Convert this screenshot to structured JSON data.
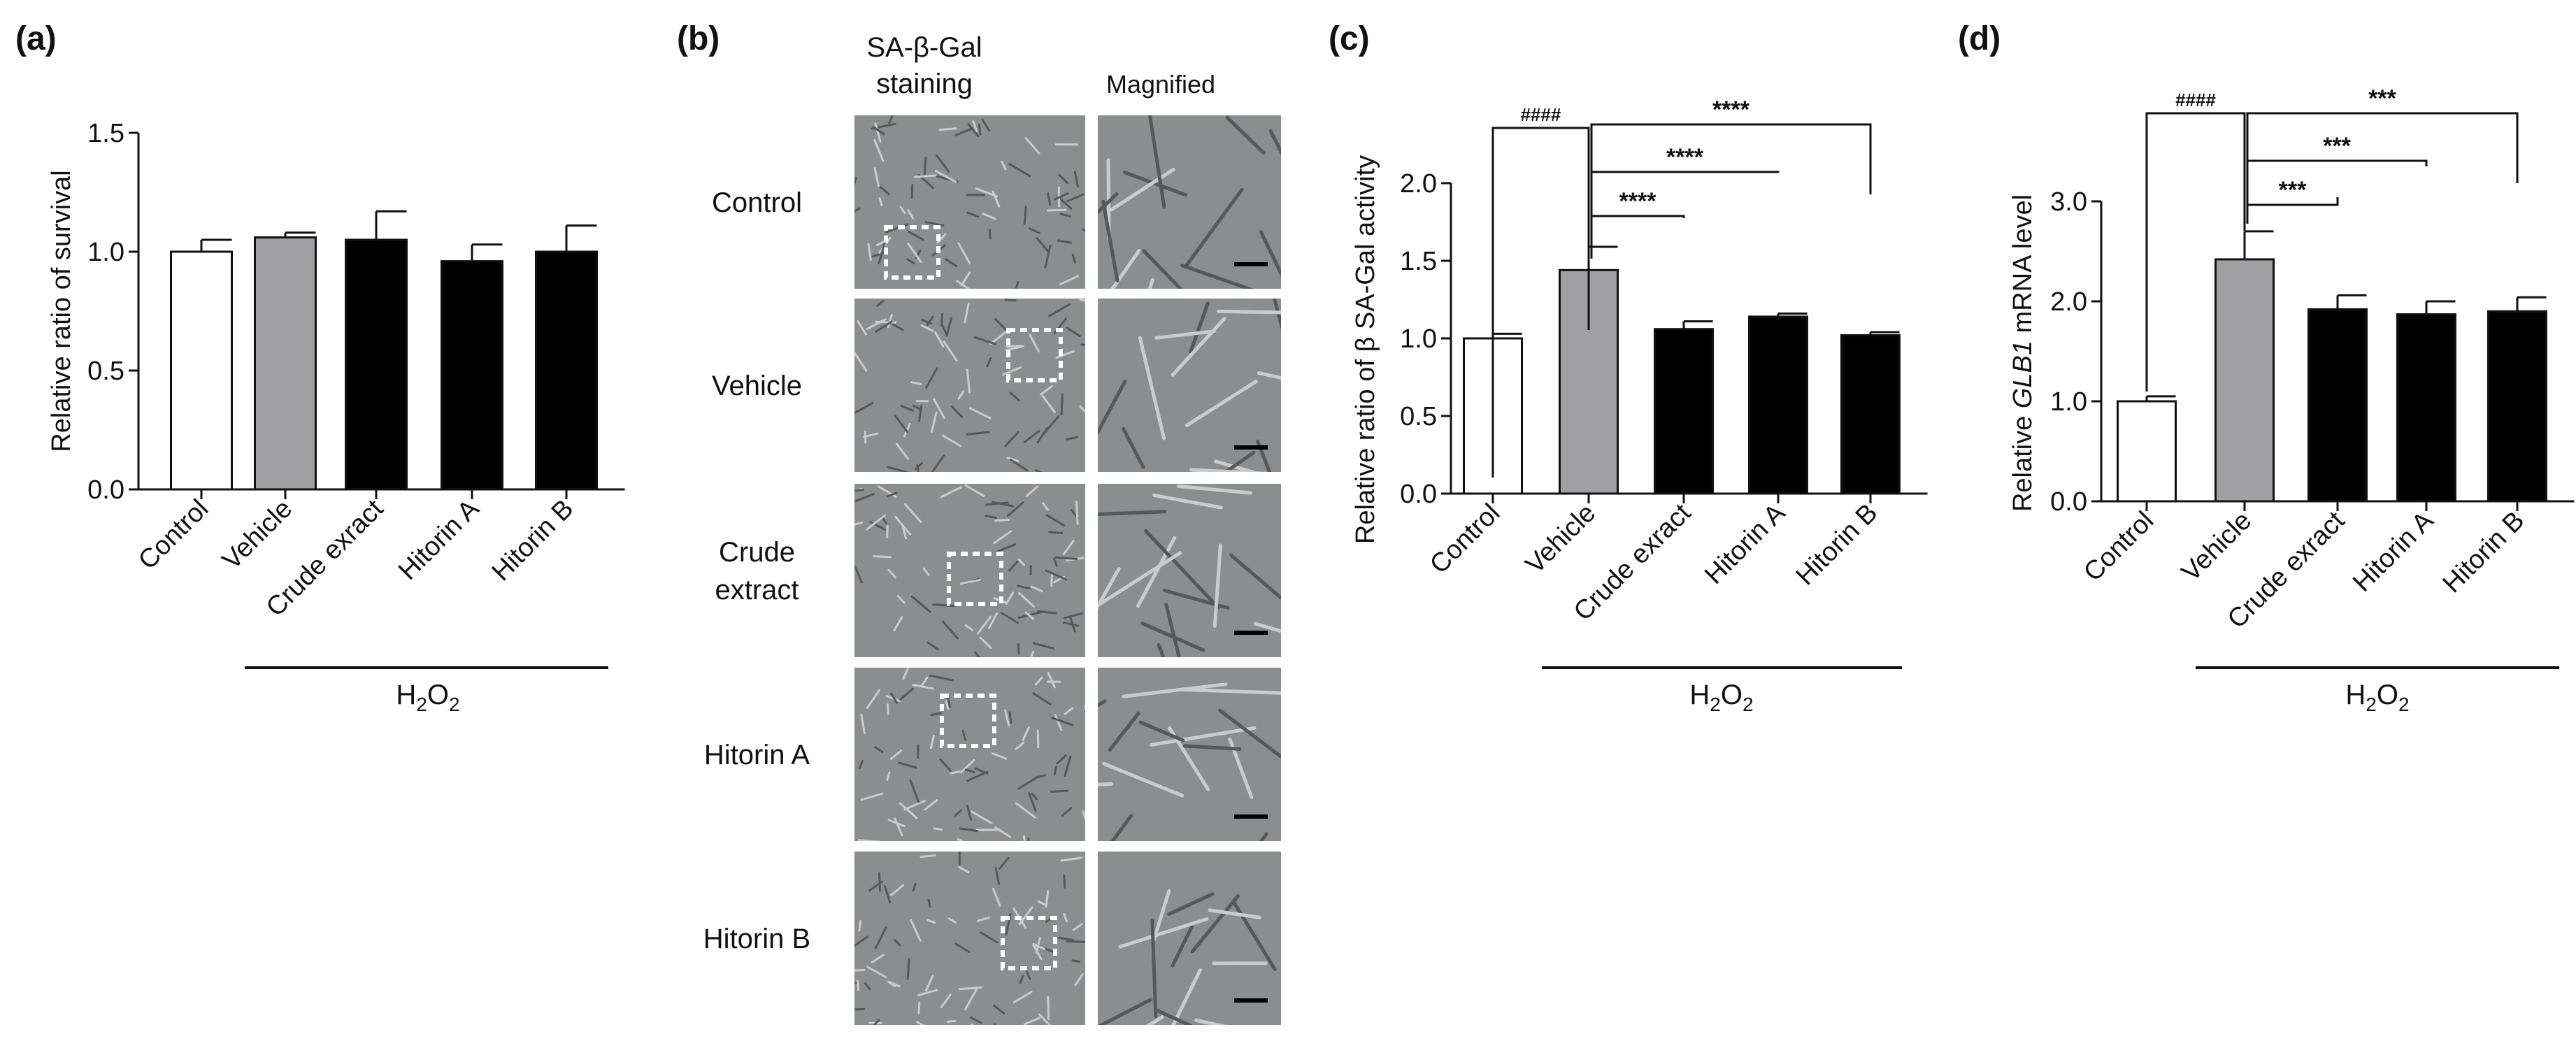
{
  "panels": {
    "a": {
      "label": "(a)"
    },
    "b": {
      "label": "(b)"
    },
    "c": {
      "label": "(c)"
    },
    "d": {
      "label": "(d)"
    }
  },
  "h2o2": {
    "base": "H",
    "sub1": "2",
    "mid": "O",
    "sub2": "2"
  },
  "images": {
    "col_headers": [
      "SA-β-Gal staining",
      "Magnified"
    ],
    "col_header_lines": [
      "SA-β-Gal",
      "staining"
    ],
    "rows": [
      {
        "label_lines": [
          "Control"
        ]
      },
      {
        "label_lines": [
          "Vehicle"
        ]
      },
      {
        "label_lines": [
          "Crude",
          "extract"
        ]
      },
      {
        "label_lines": [
          "Hitorin A"
        ]
      },
      {
        "label_lines": [
          "Hitorin B"
        ]
      }
    ]
  },
  "colors": {
    "control": "#ffffff",
    "vehicle": "#a0a0a3",
    "treatment": "#000000",
    "micro_bg": "#8b8d8e"
  },
  "chart_data": [
    {
      "panel": "a",
      "type": "bar",
      "categories": [
        "Control",
        "Vehicle",
        "Crude exract",
        "Hitorin A",
        "Hitorin B"
      ],
      "values": [
        1.0,
        1.06,
        1.05,
        0.96,
        1.0
      ],
      "errors": [
        0.05,
        0.02,
        0.12,
        0.07,
        0.11
      ],
      "fills": [
        "#ffffff",
        "#a0a0a3",
        "#000000",
        "#000000",
        "#000000"
      ],
      "xlabel": "",
      "ylabel": "Relative ratio of survival",
      "ylim": [
        0,
        1.5
      ],
      "yticks": [
        "0.0",
        "0.5",
        "1.0",
        "1.5"
      ],
      "group_label": "H2O2",
      "annotations": []
    },
    {
      "panel": "c",
      "type": "bar",
      "categories": [
        "Control",
        "Vehicle",
        "Crude exract",
        "Hitorin A",
        "Hitorin B"
      ],
      "values": [
        1.0,
        1.44,
        1.06,
        1.14,
        1.02
      ],
      "errors": [
        0.03,
        0.15,
        0.05,
        0.02,
        0.02
      ],
      "fills": [
        "#ffffff",
        "#a0a0a3",
        "#000000",
        "#000000",
        "#000000"
      ],
      "xlabel": "",
      "ylabel": "Relative ratio of β SA-Gal activity",
      "ylim": [
        0,
        2.0
      ],
      "yticks": [
        "0.0",
        "0.5",
        "1.0",
        "1.5",
        "2.0"
      ],
      "group_label": "H2O2",
      "annotations": [
        {
          "text": "####"
        },
        {
          "text": "****"
        },
        {
          "text": "****"
        },
        {
          "text": "****"
        }
      ]
    },
    {
      "panel": "d",
      "type": "bar",
      "categories": [
        "Control",
        "Vehicle",
        "Crude exract",
        "Hitorin A",
        "Hitorin B"
      ],
      "values": [
        1.0,
        2.42,
        1.92,
        1.87,
        1.9
      ],
      "errors": [
        0.05,
        0.28,
        0.14,
        0.13,
        0.14
      ],
      "fills": [
        "#ffffff",
        "#a0a0a3",
        "#000000",
        "#000000",
        "#000000"
      ],
      "xlabel": "",
      "ylabel": "Relative GLB1 mRNA level",
      "ylabel_parts": [
        "Relative ",
        "GLB1",
        " mRNA level"
      ],
      "ylim": [
        0,
        3.0
      ],
      "yticks": [
        "0.0",
        "1.0",
        "2.0",
        "3.0"
      ],
      "group_label": "H2O2",
      "annotations": [
        {
          "text": "####"
        },
        {
          "text": "***"
        },
        {
          "text": "***"
        },
        {
          "text": "***"
        }
      ]
    }
  ]
}
